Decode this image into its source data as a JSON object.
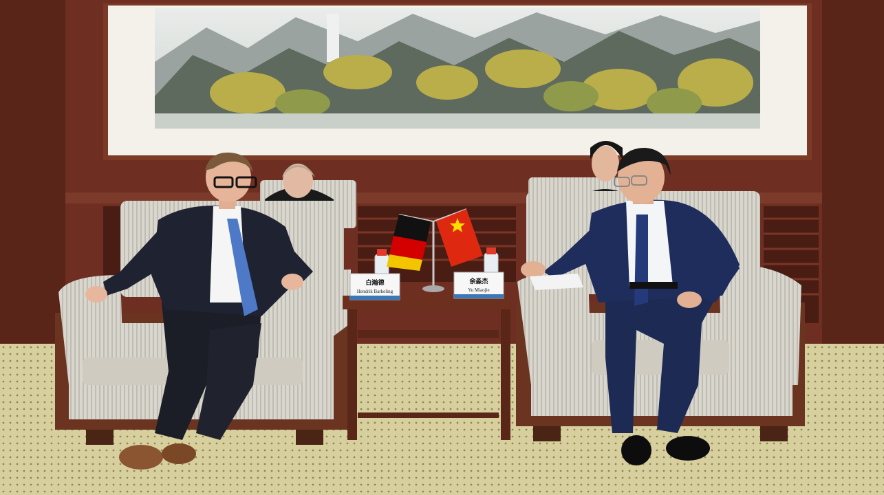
{
  "scene": {
    "description_free": true,
    "name_cards": [
      {
        "id": "left",
        "chinese": "白瀚德",
        "latin": "Hendrik Barkeling"
      },
      {
        "id": "right",
        "chinese": "余淼杰",
        "latin": "Yu Miaojie"
      }
    ],
    "flags": [
      "germany",
      "china"
    ],
    "colors": {
      "wall": "#6e2f22",
      "wall_dark": "#4a1d14",
      "carpet": "#d9d0a3",
      "chair_fabric": "#d8d5cd",
      "chair_wood": "#6a3420",
      "suit_left": "#1f2230",
      "suit_right": "#1f2d5c",
      "germany_black": "#111111",
      "germany_red": "#d40000",
      "germany_gold": "#f2c500",
      "china_red": "#de2910",
      "china_star": "#ffde00"
    }
  }
}
